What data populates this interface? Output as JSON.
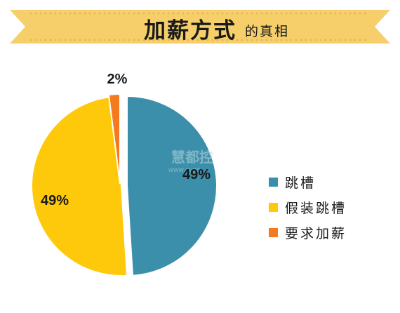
{
  "banner": {
    "title_main": "加薪方式",
    "title_sub": "的真相",
    "fill_color": "#f6cf6b",
    "dot_color": "#e5b84e"
  },
  "watermark": {
    "line1": "慧都控",
    "line2": "www.evge"
  },
  "chart_data": {
    "type": "pie",
    "title": "加薪方式的真相",
    "slices": [
      {
        "label": "跳槽",
        "value": 49,
        "display": "49%",
        "color": "#3b8fab"
      },
      {
        "label": "假装跳槽",
        "value": 49,
        "display": "49%",
        "color": "#ffc90b"
      },
      {
        "label": "要求加薪",
        "value": 2,
        "display": "2%",
        "color": "#f47a1f"
      }
    ],
    "legend_position": "right"
  }
}
